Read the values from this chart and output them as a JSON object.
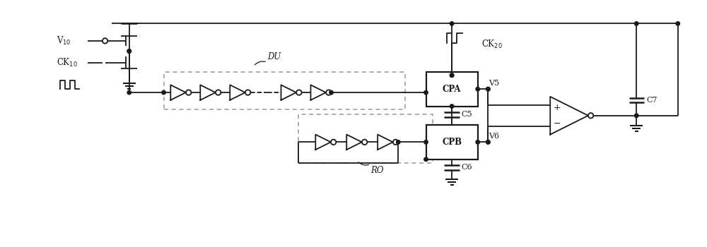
{
  "bg_color": "#ffffff",
  "line_color": "#1a1a1a",
  "dashed_box_color": "#999999",
  "figsize": [
    10.0,
    3.5
  ],
  "dpi": 100,
  "xlim": [
    0,
    100
  ],
  "ylim": [
    0,
    35
  ]
}
